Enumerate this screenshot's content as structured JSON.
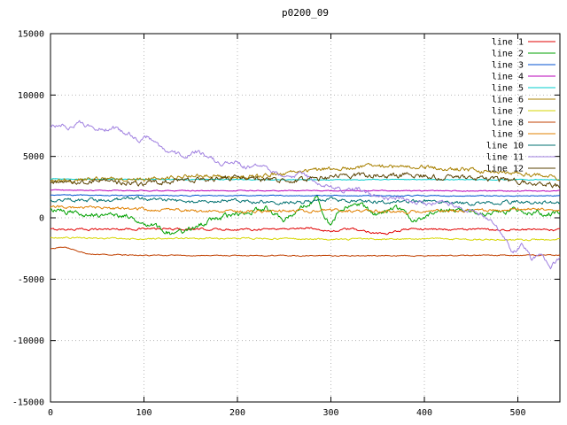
{
  "title": "p0200_09",
  "chart_data": {
    "type": "line",
    "title": "p0200_09",
    "xlabel": "",
    "ylabel": "",
    "xlim": [
      0,
      545
    ],
    "ylim": [
      -15000,
      15000
    ],
    "x_ticks": [
      0,
      100,
      200,
      300,
      400,
      500
    ],
    "y_ticks": [
      -15000,
      -10000,
      -5000,
      0,
      5000,
      10000,
      15000
    ],
    "grid": "dotted",
    "legend_position": "top-right",
    "border_color": "#000000",
    "grid_color": "#b8b8b8",
    "series": [
      {
        "name": "line 1",
        "color": "#e00000",
        "noise": 120,
        "points": [
          [
            0,
            -950
          ],
          [
            100,
            -900
          ],
          [
            200,
            -950
          ],
          [
            280,
            -850
          ],
          [
            300,
            -1100
          ],
          [
            320,
            -900
          ],
          [
            360,
            -1350
          ],
          [
            380,
            -900
          ],
          [
            450,
            -950
          ],
          [
            545,
            -1000
          ]
        ]
      },
      {
        "name": "line 2",
        "color": "#00a000",
        "noise": 300,
        "points": [
          [
            0,
            600
          ],
          [
            40,
            300
          ],
          [
            80,
            200
          ],
          [
            110,
            -600
          ],
          [
            130,
            -1400
          ],
          [
            150,
            -900
          ],
          [
            170,
            -200
          ],
          [
            200,
            300
          ],
          [
            230,
            800
          ],
          [
            250,
            -200
          ],
          [
            270,
            900
          ],
          [
            285,
            1600
          ],
          [
            300,
            -700
          ],
          [
            310,
            700
          ],
          [
            330,
            1100
          ],
          [
            350,
            200
          ],
          [
            370,
            800
          ],
          [
            390,
            -300
          ],
          [
            410,
            500
          ],
          [
            440,
            700
          ],
          [
            470,
            400
          ],
          [
            500,
            600
          ],
          [
            530,
            300
          ],
          [
            545,
            400
          ]
        ]
      },
      {
        "name": "line 3",
        "color": "#0050d0",
        "noise": 50,
        "points": [
          [
            0,
            1850
          ],
          [
            150,
            1800
          ],
          [
            300,
            1820
          ],
          [
            450,
            1780
          ],
          [
            545,
            1800
          ]
        ]
      },
      {
        "name": "line 4",
        "color": "#b800b8",
        "noise": 55,
        "points": [
          [
            0,
            2250
          ],
          [
            150,
            2200
          ],
          [
            300,
            2220
          ],
          [
            450,
            2180
          ],
          [
            545,
            2200
          ]
        ]
      },
      {
        "name": "line 5",
        "color": "#00cccc",
        "noise": 45,
        "points": [
          [
            0,
            3150
          ],
          [
            150,
            3120
          ],
          [
            300,
            3100
          ],
          [
            450,
            3120
          ],
          [
            545,
            3100
          ]
        ]
      },
      {
        "name": "line 6",
        "color": "#a88000",
        "noise": 250,
        "points": [
          [
            0,
            3000
          ],
          [
            50,
            3200
          ],
          [
            100,
            3100
          ],
          [
            150,
            3500
          ],
          [
            200,
            3300
          ],
          [
            250,
            3600
          ],
          [
            300,
            4000
          ],
          [
            350,
            4200
          ],
          [
            400,
            4100
          ],
          [
            450,
            3900
          ],
          [
            500,
            3600
          ],
          [
            545,
            3300
          ]
        ]
      },
      {
        "name": "line 7",
        "color": "#d6d600",
        "noise": 90,
        "points": [
          [
            0,
            -1600
          ],
          [
            100,
            -1700
          ],
          [
            200,
            -1650
          ],
          [
            300,
            -1750
          ],
          [
            400,
            -1700
          ],
          [
            500,
            -1800
          ],
          [
            545,
            -1750
          ]
        ]
      },
      {
        "name": "line 8",
        "color": "#c04000",
        "noise": 60,
        "points": [
          [
            0,
            -2550
          ],
          [
            15,
            -2350
          ],
          [
            40,
            -2950
          ],
          [
            100,
            -3050
          ],
          [
            300,
            -3100
          ],
          [
            500,
            -3050
          ],
          [
            545,
            -3050
          ]
        ]
      },
      {
        "name": "line 9",
        "color": "#e08000",
        "noise": 180,
        "points": [
          [
            0,
            900
          ],
          [
            100,
            700
          ],
          [
            200,
            500
          ],
          [
            300,
            600
          ],
          [
            400,
            500
          ],
          [
            500,
            700
          ],
          [
            545,
            600
          ]
        ]
      },
      {
        "name": "line 10",
        "color": "#007070",
        "noise": 200,
        "points": [
          [
            0,
            1500
          ],
          [
            50,
            1400
          ],
          [
            100,
            1600
          ],
          [
            150,
            1300
          ],
          [
            200,
            1400
          ],
          [
            250,
            1200
          ],
          [
            300,
            1500
          ],
          [
            350,
            1300
          ],
          [
            400,
            1400
          ],
          [
            450,
            1200
          ],
          [
            500,
            1300
          ],
          [
            545,
            1250
          ]
        ]
      },
      {
        "name": "line 11",
        "color": "#a080e0",
        "noise": 250,
        "points": [
          [
            0,
            7400
          ],
          [
            10,
            7600
          ],
          [
            20,
            7300
          ],
          [
            30,
            7800
          ],
          [
            40,
            7500
          ],
          [
            55,
            7200
          ],
          [
            70,
            7300
          ],
          [
            85,
            6800
          ],
          [
            95,
            6300
          ],
          [
            105,
            6600
          ],
          [
            115,
            5900
          ],
          [
            125,
            5500
          ],
          [
            135,
            5200
          ],
          [
            145,
            4900
          ],
          [
            155,
            5400
          ],
          [
            165,
            5100
          ],
          [
            175,
            4700
          ],
          [
            185,
            4400
          ],
          [
            195,
            4600
          ],
          [
            210,
            4100
          ],
          [
            225,
            4400
          ],
          [
            240,
            3700
          ],
          [
            255,
            3300
          ],
          [
            270,
            3600
          ],
          [
            285,
            2900
          ],
          [
            300,
            2500
          ],
          [
            315,
            2200
          ],
          [
            330,
            2400
          ],
          [
            345,
            1800
          ],
          [
            360,
            1500
          ],
          [
            375,
            1700
          ],
          [
            390,
            1300
          ],
          [
            405,
            1100
          ],
          [
            420,
            1300
          ],
          [
            435,
            900
          ],
          [
            450,
            600
          ],
          [
            465,
            200
          ],
          [
            475,
            -400
          ],
          [
            485,
            -1600
          ],
          [
            495,
            -2800
          ],
          [
            505,
            -2200
          ],
          [
            515,
            -3400
          ],
          [
            525,
            -2800
          ],
          [
            535,
            -3900
          ],
          [
            545,
            -3200
          ]
        ]
      },
      {
        "name": "line 12",
        "color": "#584000",
        "noise": 300,
        "points": [
          [
            0,
            2900
          ],
          [
            50,
            3000
          ],
          [
            100,
            2800
          ],
          [
            150,
            3100
          ],
          [
            200,
            3200
          ],
          [
            250,
            3000
          ],
          [
            300,
            3300
          ],
          [
            350,
            3500
          ],
          [
            400,
            3400
          ],
          [
            450,
            3200
          ],
          [
            500,
            3000
          ],
          [
            545,
            2600
          ]
        ]
      }
    ]
  }
}
